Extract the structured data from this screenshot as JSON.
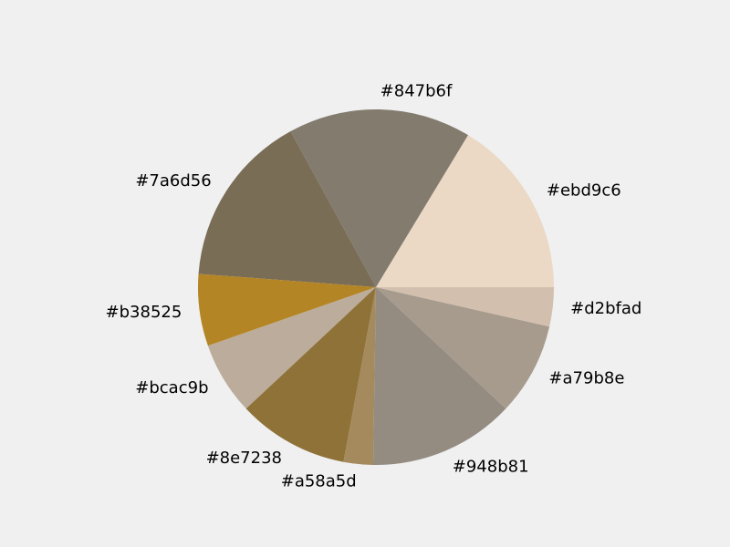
{
  "colors": {
    "background": "#f0f0f0"
  },
  "chart_data": {
    "type": "pie",
    "start_angle_deg": 0,
    "direction": "counterclockwise",
    "slices": [
      {
        "label": "#ebd9c6",
        "value": 16.5,
        "color": "#ebd9c6"
      },
      {
        "label": "#847b6f",
        "value": 16.8,
        "color": "#847b6f"
      },
      {
        "label": "#7a6d56",
        "value": 16.0,
        "color": "#7a6d56"
      },
      {
        "label": "#b38525",
        "value": 6.6,
        "color": "#b38525"
      },
      {
        "label": "#bcac9b",
        "value": 6.7,
        "color": "#bcac9b"
      },
      {
        "label": "#8e7238",
        "value": 10.2,
        "color": "#8e7238"
      },
      {
        "label": "#a58a5d",
        "value": 2.7,
        "color": "#a58a5d"
      },
      {
        "label": "#948b81",
        "value": 13.4,
        "color": "#948b81"
      },
      {
        "label": "#a79b8e",
        "value": 8.5,
        "color": "#a79b8e"
      },
      {
        "label": "#d2bfad",
        "value": 3.6,
        "color": "#d2bfad"
      }
    ]
  }
}
